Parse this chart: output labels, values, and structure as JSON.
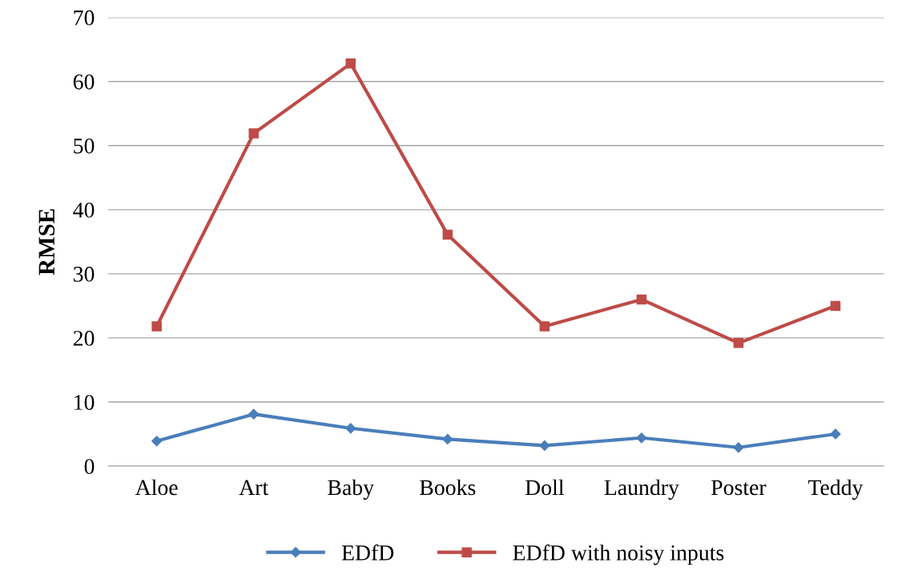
{
  "chart_data": {
    "type": "line",
    "ylabel": "RMSE",
    "categories": [
      "Aloe",
      "Art",
      "Baby",
      "Books",
      "Doll",
      "Laundry",
      "Poster",
      "Teddy"
    ],
    "series": [
      {
        "name": "EDfD",
        "color": "#4a7ebb",
        "marker": "diamond",
        "values": [
          3.9,
          8.1,
          5.9,
          4.2,
          3.2,
          4.4,
          2.9,
          5.0
        ]
      },
      {
        "name": "EDfD with noisy inputs",
        "color": "#be4b48",
        "marker": "square",
        "values": [
          21.8,
          51.9,
          62.8,
          36.1,
          21.8,
          26.0,
          19.2,
          25.0
        ]
      }
    ],
    "ylim": [
      0,
      70
    ],
    "yticks": [
      0,
      10,
      20,
      30,
      40,
      50,
      60,
      70
    ],
    "grid": "y",
    "legend": "bottom",
    "line_style": "solid"
  }
}
